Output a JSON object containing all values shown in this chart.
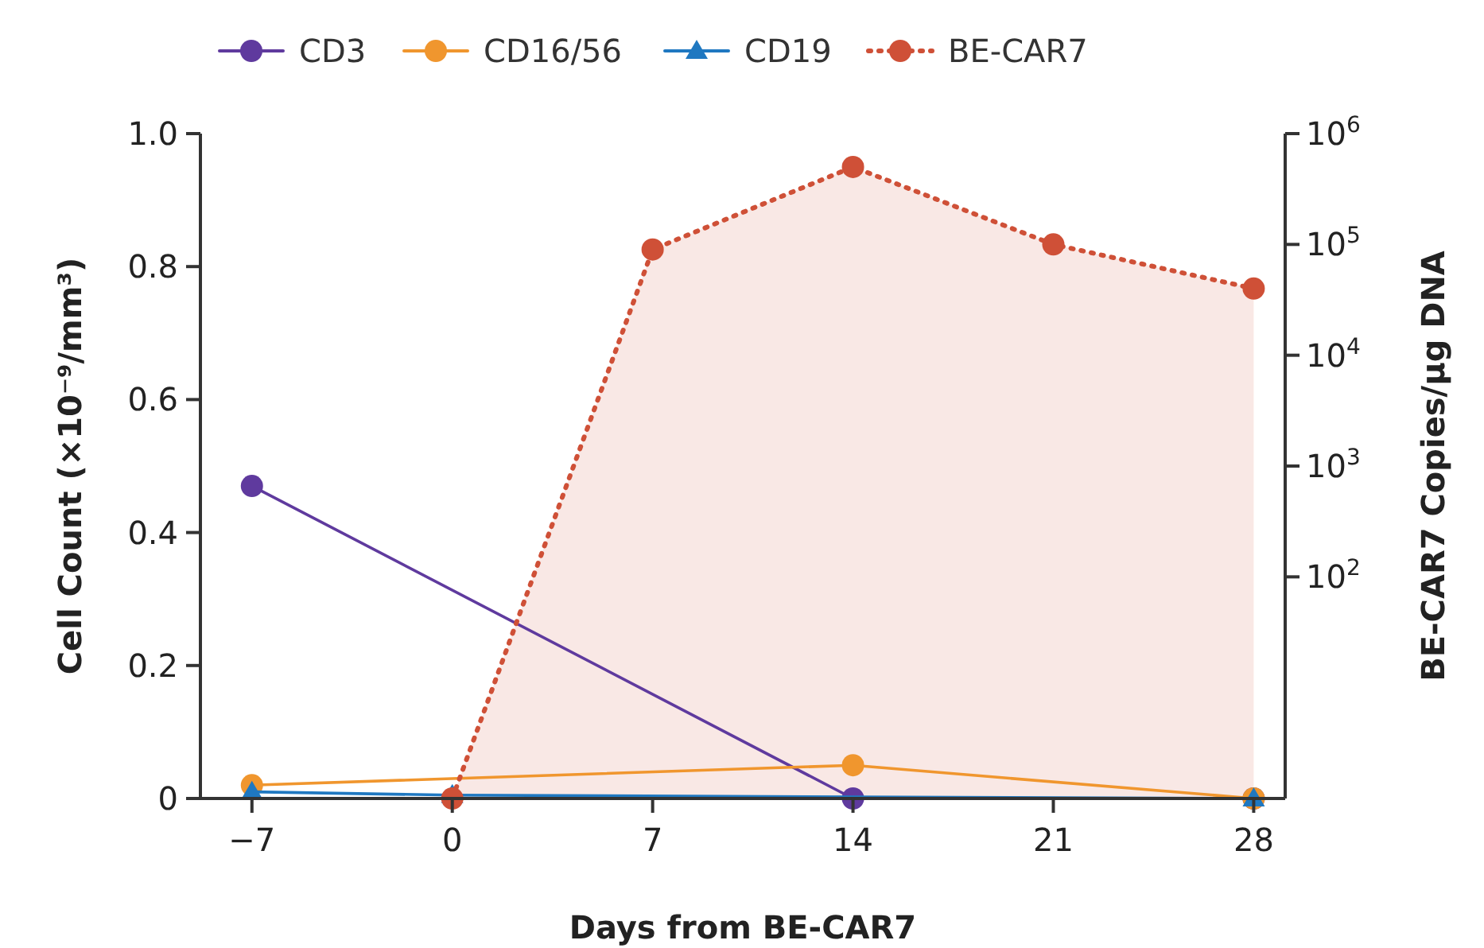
{
  "chart_data": {
    "type": "line",
    "xlabel": "Days from BE-CAR7",
    "ylabel": "Cell Count (×10⁻⁹/mm³)",
    "y2label": "BE-CAR7 Copies/µg DNA",
    "xlim": [
      -8.8,
      29.1
    ],
    "xticks": [
      {
        "value": -7,
        "label": "−7"
      },
      0,
      7,
      14,
      21,
      28
    ],
    "ylim": [
      0,
      1
    ],
    "yticks": [
      {
        "value": 0,
        "label": "0"
      },
      {
        "value": 0.2,
        "label": "0.2"
      },
      {
        "value": 0.4,
        "label": "0.4"
      },
      {
        "value": 0.6,
        "label": "0.6"
      },
      {
        "value": 0.8,
        "label": "0.8"
      },
      {
        "value": 1,
        "label": "1.0"
      }
    ],
    "y2lim": [
      1,
      1000000
    ],
    "y2ticks": [
      {
        "value": 100,
        "label": "10$^{2}$"
      },
      {
        "value": 1000,
        "label": "10$^{3}$"
      },
      {
        "value": 10000,
        "label": "10$^{4}$"
      },
      {
        "value": 100000,
        "label": "10$^{5}$"
      },
      {
        "value": 1000000,
        "label": "10$^{6}$"
      }
    ],
    "log": "y2",
    "legend": "top",
    "grid": false,
    "series": [
      {
        "name": "CD3",
        "color": "#5f3a9e",
        "marker": "circle",
        "line_style": "solid",
        "x": [
          -7,
          14,
          28
        ],
        "values": [
          0.47,
          0,
          0
        ]
      },
      {
        "name": "CD16/56",
        "color": "#f0962e",
        "marker": "circle",
        "line_style": "solid",
        "x": [
          -7,
          14,
          28
        ],
        "values": [
          0.02,
          0.05,
          0
        ]
      },
      {
        "name": "CD19",
        "color": "#1f78c1",
        "marker": "triangle",
        "line_style": "solid",
        "x": [
          -7,
          0,
          28
        ],
        "values": [
          0.01,
          0.005,
          0
        ]
      },
      {
        "name": "BE-CAR7",
        "type": "area",
        "axis": "y2",
        "color": "#cf5037",
        "marker": "circle",
        "line_style": "dotted",
        "x": [
          0,
          7,
          14,
          21,
          28
        ],
        "values": [
          1,
          90000,
          500000,
          100000,
          40000
        ]
      }
    ]
  }
}
